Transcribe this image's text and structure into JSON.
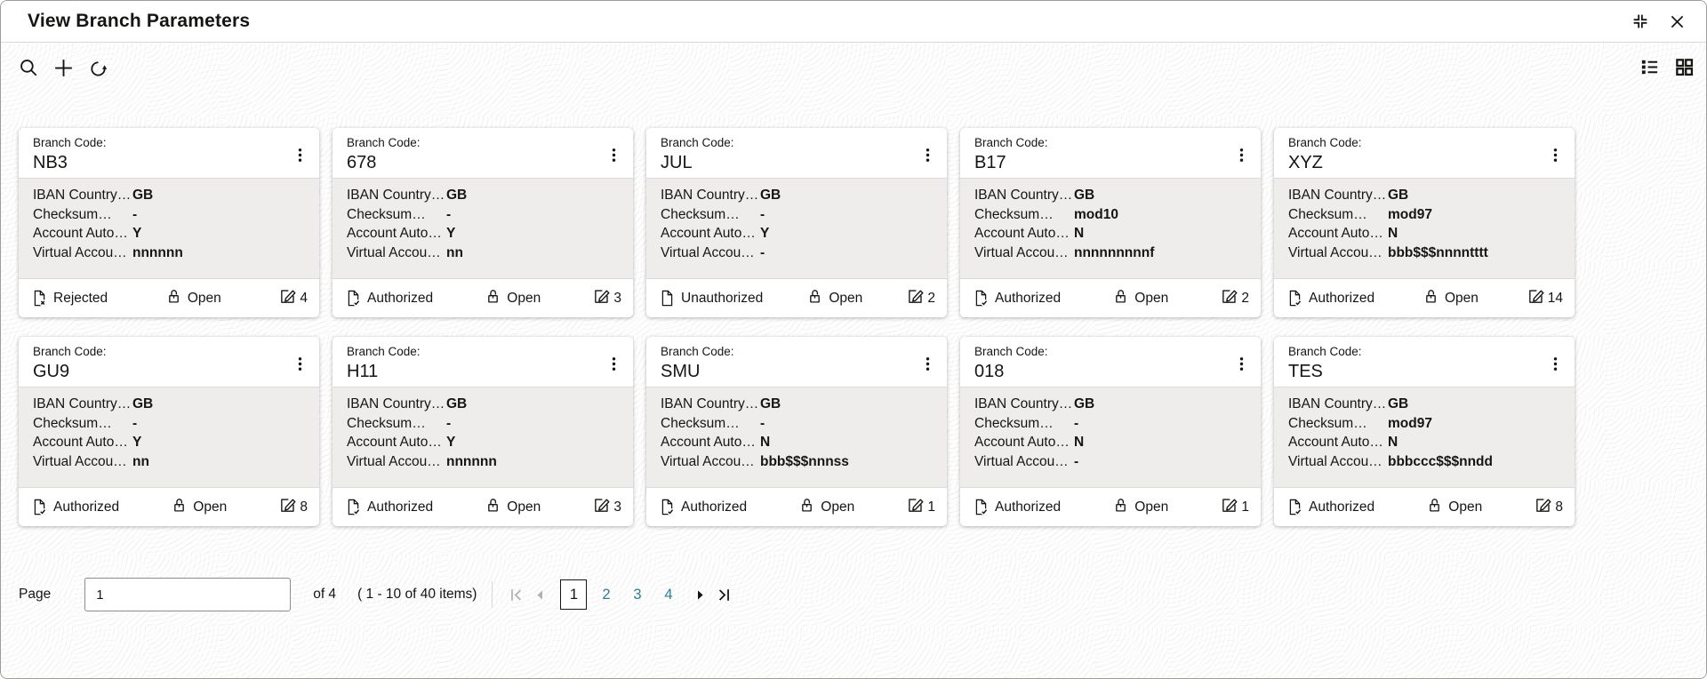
{
  "window": {
    "title": "View Branch Parameters",
    "icons": {
      "expand": "expand-corners-icon",
      "close": "close-x-icon"
    }
  },
  "toolbar": {
    "icons": {
      "search": "search-icon",
      "add": "plus-icon",
      "refresh": "refresh-icon"
    },
    "view_icons": {
      "list": "list-view-icon",
      "grid": "grid-view-icon"
    }
  },
  "labels": {
    "branch_code": "Branch Code:"
  },
  "card_field_labels": [
    "IBAN Country…",
    "Checksum…",
    "Account Auto…",
    "Virtual Accou…"
  ],
  "cards": [
    {
      "branch_code": "NB3",
      "values": [
        "GB",
        "-",
        "Y",
        "nnnnnn"
      ],
      "status": "Rejected",
      "status_icon": "rejected",
      "record_state": "Open",
      "edit_count": "4"
    },
    {
      "branch_code": "678",
      "values": [
        "GB",
        "-",
        "Y",
        "nn"
      ],
      "status": "Authorized",
      "status_icon": "authorized",
      "record_state": "Open",
      "edit_count": "3"
    },
    {
      "branch_code": "JUL",
      "values": [
        "GB",
        "-",
        "Y",
        "-"
      ],
      "status": "Unauthorized",
      "status_icon": "unauthorized",
      "record_state": "Open",
      "edit_count": "2"
    },
    {
      "branch_code": "B17",
      "values": [
        "GB",
        "mod10",
        "N",
        "nnnnnnnnnf"
      ],
      "status": "Authorized",
      "status_icon": "authorized",
      "record_state": "Open",
      "edit_count": "2"
    },
    {
      "branch_code": "XYZ",
      "values": [
        "GB",
        "mod97",
        "N",
        "bbb$$$nnnntttt"
      ],
      "status": "Authorized",
      "status_icon": "authorized",
      "record_state": "Open",
      "edit_count": "14"
    },
    {
      "branch_code": "GU9",
      "values": [
        "GB",
        "-",
        "Y",
        "nn"
      ],
      "status": "Authorized",
      "status_icon": "authorized",
      "record_state": "Open",
      "edit_count": "8"
    },
    {
      "branch_code": "H11",
      "values": [
        "GB",
        "-",
        "Y",
        "nnnnnn"
      ],
      "status": "Authorized",
      "status_icon": "authorized",
      "record_state": "Open",
      "edit_count": "3"
    },
    {
      "branch_code": "SMU",
      "values": [
        "GB",
        "-",
        "N",
        "bbb$$$nnnss"
      ],
      "status": "Authorized",
      "status_icon": "authorized",
      "record_state": "Open",
      "edit_count": "1"
    },
    {
      "branch_code": "018",
      "values": [
        "GB",
        "-",
        "N",
        "-"
      ],
      "status": "Authorized",
      "status_icon": "authorized",
      "record_state": "Open",
      "edit_count": "1"
    },
    {
      "branch_code": "TES",
      "values": [
        "GB",
        "mod97",
        "N",
        "bbbccc$$$nndd"
      ],
      "status": "Authorized",
      "status_icon": "authorized",
      "record_state": "Open",
      "edit_count": "8"
    }
  ],
  "pagination": {
    "page_label": "Page",
    "page_value": "1",
    "of_label": "of 4",
    "items_label": "( 1 - 10 of 40 items)",
    "pages": [
      "1",
      "2",
      "3",
      "4"
    ],
    "current_page": "1"
  },
  "colors": {
    "text": "#161513",
    "accent_teal": "#2d7f95",
    "card_body_bg": "#eeedeb",
    "divider": "#dcd9d5"
  }
}
